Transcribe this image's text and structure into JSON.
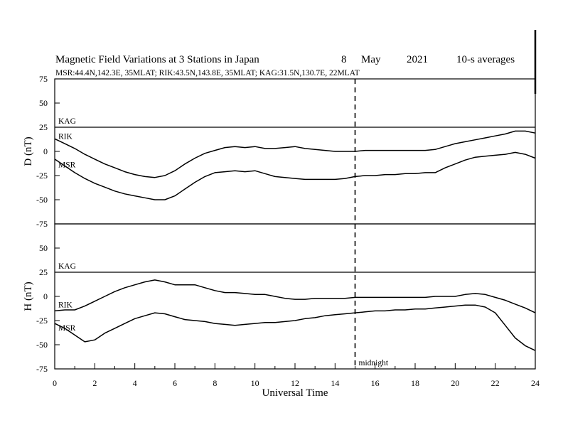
{
  "chart_data": {
    "type": "line",
    "title": {
      "main": "Magnetic Field Variations at 3 Stations in Japan",
      "day": "8",
      "month": "May",
      "year": "2021",
      "averaging": "10-s averages"
    },
    "subtitle": "MSR:44.4N,142.3E, 35MLAT;  RIK:43.5N,143.8E, 35MLAT;  KAG:31.5N,130.7E, 22MLAT",
    "xlabel": "Universal Time",
    "x_ticks": [
      "0",
      "2",
      "4",
      "6",
      "8",
      "10",
      "12",
      "14",
      "16",
      "18",
      "20",
      "22",
      "24"
    ],
    "xlim": [
      0,
      24
    ],
    "y_ticks": [
      "75",
      "50",
      "25",
      "0",
      "-25",
      "-50",
      "-75"
    ],
    "ylim": [
      -75,
      75
    ],
    "grid": false,
    "annotation": {
      "x": 15,
      "label": "midnight"
    },
    "panels": [
      {
        "ylabel": "D (nT)",
        "series": [
          {
            "name": "KAG",
            "x": [
              0,
              24
            ],
            "y": [
              25,
              25
            ]
          },
          {
            "name": "RIK",
            "x": [
              0,
              0.5,
              1,
              1.5,
              2,
              2.5,
              3,
              3.5,
              4,
              4.5,
              5,
              5.5,
              6,
              6.5,
              7,
              7.5,
              8,
              8.5,
              9,
              9.5,
              10,
              10.5,
              11,
              11.5,
              12,
              12.5,
              13,
              13.5,
              14,
              14.5,
              15,
              15.5,
              16,
              16.5,
              17,
              17.5,
              18,
              18.5,
              19,
              19.5,
              20,
              20.5,
              21,
              21.5,
              22,
              22.5,
              23,
              23.5,
              24
            ],
            "y": [
              13,
              8,
              3,
              -3,
              -8,
              -13,
              -17,
              -21,
              -24,
              -26,
              -27,
              -25,
              -20,
              -13,
              -7,
              -2,
              1,
              4,
              5,
              4,
              5,
              3,
              3,
              4,
              5,
              3,
              2,
              1,
              0,
              0,
              0,
              1,
              1,
              1,
              1,
              1,
              1,
              1,
              2,
              5,
              8,
              10,
              12,
              14,
              16,
              18,
              21,
              21,
              19
            ]
          },
          {
            "name": "MSR",
            "x": [
              0,
              0.5,
              1,
              1.5,
              2,
              2.5,
              3,
              3.5,
              4,
              4.5,
              5,
              5.5,
              6,
              6.5,
              7,
              7.5,
              8,
              8.5,
              9,
              9.5,
              10,
              10.5,
              11,
              11.5,
              12,
              12.5,
              13,
              13.5,
              14,
              14.5,
              15,
              15.5,
              16,
              16.5,
              17,
              17.5,
              18,
              18.5,
              19,
              19.5,
              20,
              20.5,
              21,
              21.5,
              22,
              22.5,
              23,
              23.5,
              24
            ],
            "y": [
              -8,
              -15,
              -22,
              -28,
              -33,
              -37,
              -41,
              -44,
              -46,
              -48,
              -50,
              -50,
              -46,
              -39,
              -32,
              -26,
              -22,
              -21,
              -20,
              -21,
              -20,
              -23,
              -26,
              -27,
              -28,
              -29,
              -29,
              -29,
              -29,
              -28,
              -26,
              -25,
              -25,
              -24,
              -24,
              -23,
              -23,
              -22,
              -22,
              -17,
              -13,
              -9,
              -6,
              -5,
              -4,
              -3,
              -1,
              -3,
              -7
            ]
          }
        ]
      },
      {
        "ylabel": "H (nT)",
        "series": [
          {
            "name": "KAG",
            "x": [
              0,
              24
            ],
            "y": [
              25,
              25
            ]
          },
          {
            "name": "RIK",
            "x": [
              0,
              0.5,
              1,
              1.5,
              2,
              2.5,
              3,
              3.5,
              4,
              4.5,
              5,
              5.5,
              6,
              6.5,
              7,
              7.5,
              8,
              8.5,
              9,
              9.5,
              10,
              10.5,
              11,
              11.5,
              12,
              12.5,
              13,
              13.5,
              14,
              14.5,
              15,
              15.5,
              16,
              16.5,
              17,
              17.5,
              18,
              18.5,
              19,
              19.5,
              20,
              20.5,
              21,
              21.5,
              22,
              22.5,
              23,
              23.5,
              24
            ],
            "y": [
              -15,
              -14,
              -14,
              -10,
              -5,
              0,
              5,
              9,
              12,
              15,
              17,
              15,
              12,
              12,
              12,
              9,
              6,
              4,
              4,
              3,
              2,
              2,
              0,
              -2,
              -3,
              -3,
              -2,
              -2,
              -2,
              -2,
              -1,
              -1,
              -1,
              -1,
              -1,
              -1,
              -1,
              -1,
              0,
              0,
              0,
              2,
              3,
              2,
              -1,
              -4,
              -8,
              -12,
              -17
            ]
          },
          {
            "name": "MSR",
            "x": [
              0,
              0.5,
              1,
              1.5,
              2,
              2.5,
              3,
              3.5,
              4,
              4.5,
              5,
              5.5,
              6,
              6.5,
              7,
              7.5,
              8,
              8.5,
              9,
              9.5,
              10,
              10.5,
              11,
              11.5,
              12,
              12.5,
              13,
              13.5,
              14,
              14.5,
              15,
              15.5,
              16,
              16.5,
              17,
              17.5,
              18,
              18.5,
              19,
              19.5,
              20,
              20.5,
              21,
              21.5,
              22,
              22.5,
              23,
              23.5,
              24
            ],
            "y": [
              -28,
              -33,
              -40,
              -47,
              -45,
              -38,
              -33,
              -28,
              -23,
              -20,
              -17,
              -18,
              -21,
              -24,
              -25,
              -26,
              -28,
              -29,
              -30,
              -29,
              -28,
              -27,
              -27,
              -26,
              -25,
              -23,
              -22,
              -20,
              -19,
              -18,
              -17,
              -16,
              -15,
              -15,
              -14,
              -14,
              -13,
              -13,
              -12,
              -11,
              -10,
              -9,
              -9,
              -11,
              -17,
              -30,
              -43,
              -51,
              -56
            ]
          }
        ]
      }
    ]
  }
}
